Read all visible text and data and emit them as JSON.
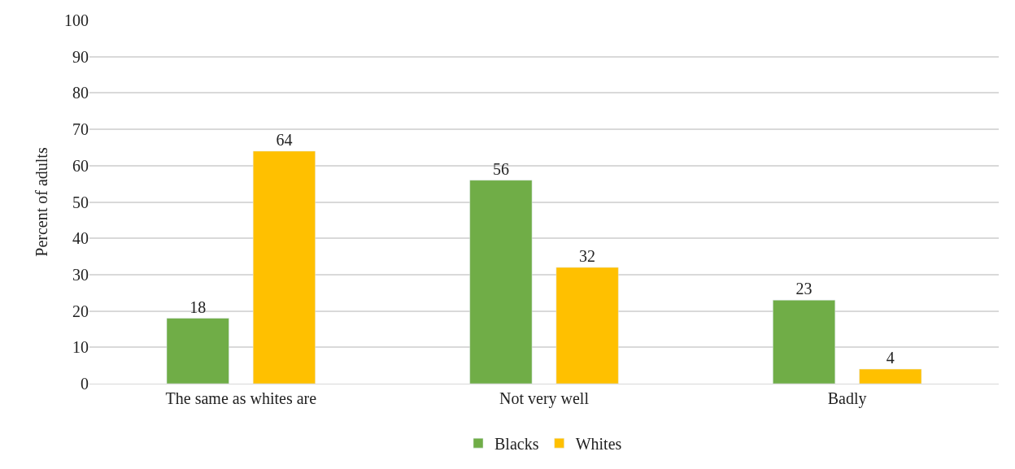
{
  "chart_data": {
    "type": "bar",
    "ylabel": "Percent of adults",
    "categories": [
      "The same as whites are",
      "Not very well",
      "Badly"
    ],
    "series": [
      {
        "name": "Blacks",
        "color": "#70ad47",
        "values": [
          18,
          56,
          23
        ]
      },
      {
        "name": "Whites",
        "color": "#ffc000",
        "values": [
          64,
          32,
          4
        ]
      }
    ],
    "ylim": [
      0,
      100
    ],
    "yticks": [
      0,
      10,
      20,
      30,
      40,
      50,
      60,
      70,
      80,
      90,
      100
    ],
    "grid": "y",
    "legend": "bottom",
    "data_labels": true
  }
}
